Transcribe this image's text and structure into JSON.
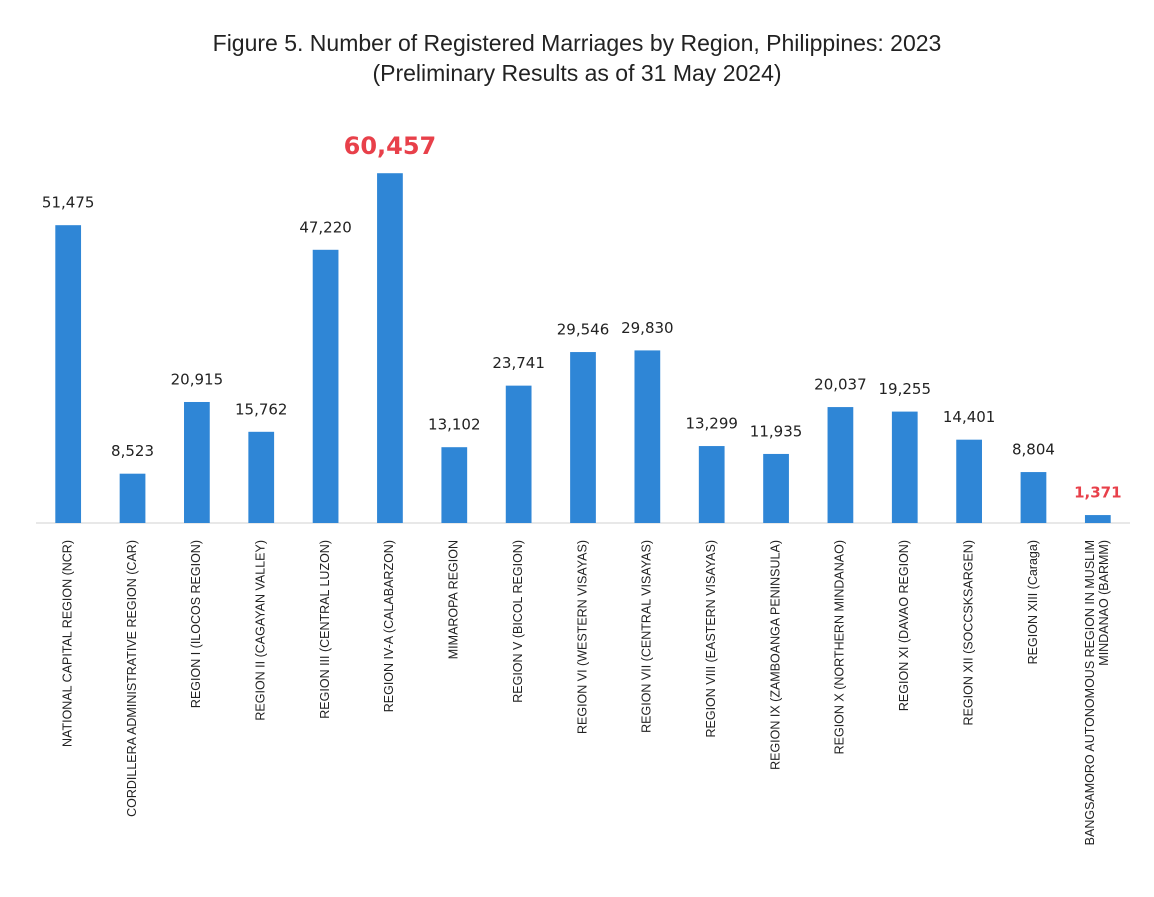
{
  "chart_data": {
    "type": "bar",
    "title": "Figure 5. Number of Registered Marriages by Region, Philippines: 2023",
    "subtitle": "(Preliminary Results as of 31 May 2024)",
    "categories": [
      "NATIONAL CAPITAL REGION (NCR)",
      "CORDILLERA ADMINISTRATIVE REGION (CAR)",
      "REGION I (ILOCOS REGION)",
      "REGION II (CAGAYAN VALLEY)",
      "REGION III (CENTRAL LUZON)",
      "REGION IV-A (CALABARZON)",
      "MIMAROPA REGION",
      "REGION V (BICOL REGION)",
      "REGION VI (WESTERN VISAYAS)",
      "REGION VII (CENTRAL VISAYAS)",
      "REGION VIII (EASTERN VISAYAS)",
      "REGION IX (ZAMBOANGA PENINSULA)",
      "REGION X (NORTHERN MINDANAO)",
      "REGION XI (DAVAO REGION)",
      "REGION XII (SOCCSKSARGEN)",
      "REGION XIII (Caraga)",
      "BANGSAMORO AUTONOMOUS REGION IN MUSLIM MINDANAO (BARMM)"
    ],
    "values": [
      51475,
      8523,
      20915,
      15762,
      47220,
      60457,
      13102,
      23741,
      29546,
      29830,
      13299,
      11935,
      20037,
      19255,
      14401,
      8804,
      1371
    ],
    "value_labels": [
      "51,475",
      "8,523",
      "20,915",
      "15,762",
      "47,220",
      "60,457",
      "13,102",
      "23,741",
      "29,546",
      "29,830",
      "13,299",
      "11,935",
      "20,037",
      "19,255",
      "14,401",
      "8,804",
      "1,371"
    ],
    "value_label_colors": [
      "#222222",
      "#222222",
      "#222222",
      "#222222",
      "#222222",
      "#e8404a",
      "#222222",
      "#222222",
      "#222222",
      "#222222",
      "#222222",
      "#222222",
      "#222222",
      "#222222",
      "#222222",
      "#222222",
      "#e8404a"
    ],
    "color": "#2f86d6",
    "ylim": [
      0,
      70000
    ]
  }
}
